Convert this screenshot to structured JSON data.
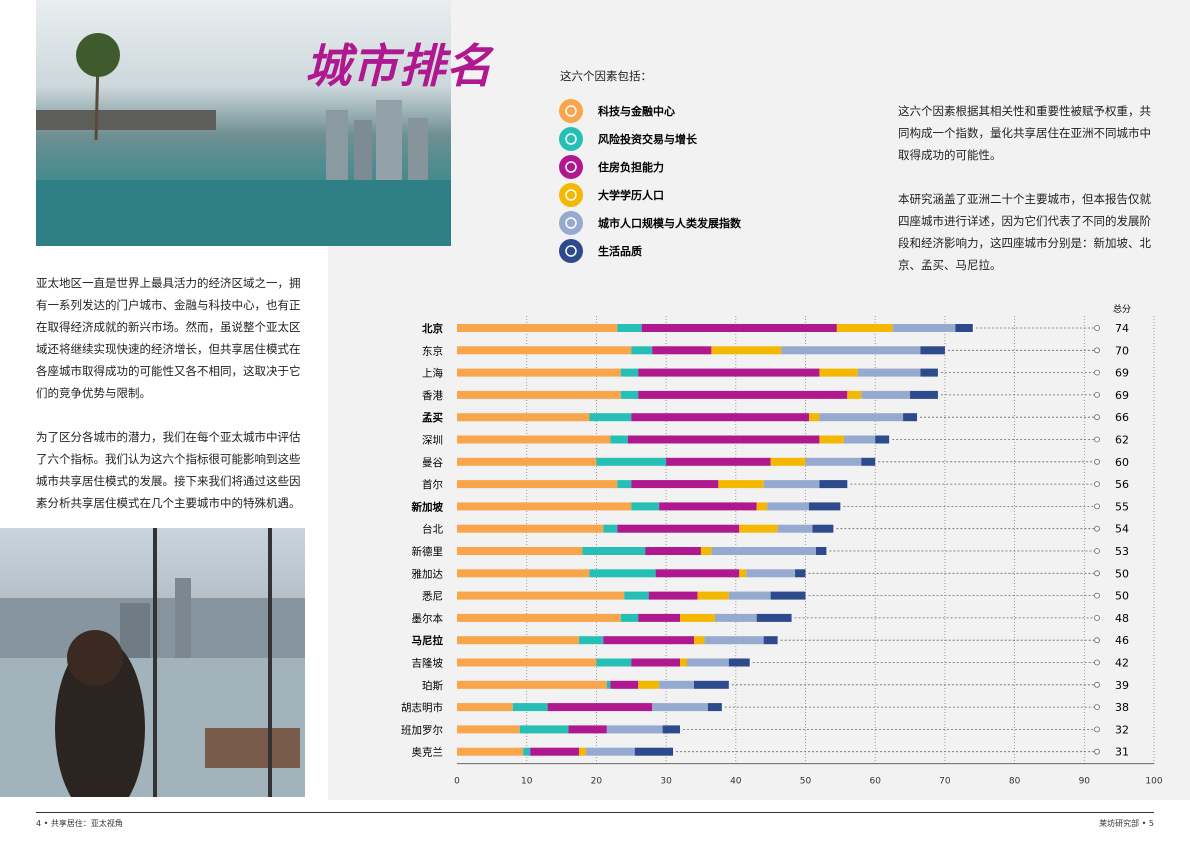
{
  "title": "城市排名",
  "intro_paragraphs": [
    "亚太地区一直是世界上最具活力的经济区域之一，拥有一系列发达的门户城市、金融与科技中心，也有正在取得经济成就的新兴市场。然而，虽说整个亚太区域还将继续实现快速的经济增长，但共享居住模式在各座城市取得成功的可能性又各不相同，这取决于它们的竞争优势与限制。",
    "为了区分各城市的潜力，我们在每个亚太城市中评估了六个指标。我们认为这六个指标很可能影响到这些城市共享居住模式的发展。接下来我们将通过这些因素分析共享居住模式在几个主要城市中的特殊机遇。"
  ],
  "description": [
    "这六个因素根据其相关性和重要性被赋予权重，共同构成一个指数，量化共享居住在亚洲不同城市中取得成功的可能性。",
    "本研究涵盖了亚洲二十个主要城市，但本报告仅就四座城市进行详述，因为它们代表了不同的发展阶段和经济影响力，这四座城市分别是：新加坡、北京、孟买、马尼拉。"
  ],
  "footer": {
    "left": "4 • 共享居住：亚太视角",
    "right": "莱坊研究部 • 5"
  },
  "chart_data": {
    "type": "bar",
    "orientation": "horizontal",
    "stacked": true,
    "grid": true,
    "legend_heading": "这六个因素包括：",
    "categories": [
      "北京",
      "东京",
      "上海",
      "香港",
      "孟买",
      "深圳",
      "曼谷",
      "首尔",
      "新加坡",
      "台北",
      "新德里",
      "雅加达",
      "悉尼",
      "墨尔本",
      "马尼拉",
      "吉隆坡",
      "珀斯",
      "胡志明市",
      "班加罗尔",
      "奥克兰"
    ],
    "highlight": [
      true,
      false,
      false,
      false,
      true,
      false,
      false,
      false,
      true,
      false,
      false,
      false,
      false,
      false,
      true,
      false,
      false,
      false,
      false,
      false
    ],
    "series": [
      {
        "name": "科技与金融中心",
        "color": "#f9a54b",
        "values": [
          23,
          25,
          23.5,
          23.5,
          19,
          22,
          20,
          23,
          25,
          21,
          18,
          19,
          24,
          23.5,
          17.5,
          20,
          21.5,
          8,
          9,
          9.5
        ]
      },
      {
        "name": "风险投资交易与增长",
        "color": "#26bfb5",
        "values": [
          3.5,
          3,
          2.5,
          2.5,
          6,
          2.5,
          10,
          2,
          4,
          2,
          9,
          9.5,
          3.5,
          2.5,
          3.5,
          5,
          0.5,
          5,
          7,
          1
        ]
      },
      {
        "name": "住房负担能力",
        "color": "#b0188f",
        "values": [
          28,
          8.5,
          26,
          30,
          25.5,
          27.5,
          15,
          12.5,
          14,
          17.5,
          8,
          12,
          7,
          6,
          13,
          7,
          4,
          15,
          5.5,
          7
        ]
      },
      {
        "name": "大学学历人口",
        "color": "#f5b800",
        "values": [
          8,
          10,
          5.5,
          2,
          1.5,
          3.5,
          5,
          6.5,
          1.5,
          5.5,
          1.5,
          1,
          4.5,
          5,
          1.5,
          1,
          3,
          0,
          0,
          1
        ]
      },
      {
        "name": "城市人口规模与人类发展指数",
        "color": "#96a9cf",
        "values": [
          9,
          20,
          9,
          7,
          12,
          4.5,
          8,
          8,
          6,
          5,
          15,
          7,
          6,
          6,
          8.5,
          6,
          5,
          8,
          8,
          7
        ]
      },
      {
        "name": "生活品质",
        "color": "#2c4a8c",
        "values": [
          2.5,
          3.5,
          2.5,
          4,
          2,
          2,
          2,
          4,
          4.5,
          3,
          1.5,
          1.5,
          5,
          5,
          2,
          3,
          5,
          2,
          2.5,
          5.5
        ]
      }
    ],
    "totals_label": "总分",
    "totals": [
      74,
      70,
      69,
      69,
      66,
      62,
      60,
      56,
      55,
      54,
      53,
      50,
      50,
      48,
      46,
      42,
      39,
      38,
      32,
      31
    ],
    "xlim": [
      0,
      100
    ],
    "xticks": [
      0,
      10,
      20,
      30,
      40,
      50,
      60,
      70,
      80,
      90,
      100
    ]
  }
}
